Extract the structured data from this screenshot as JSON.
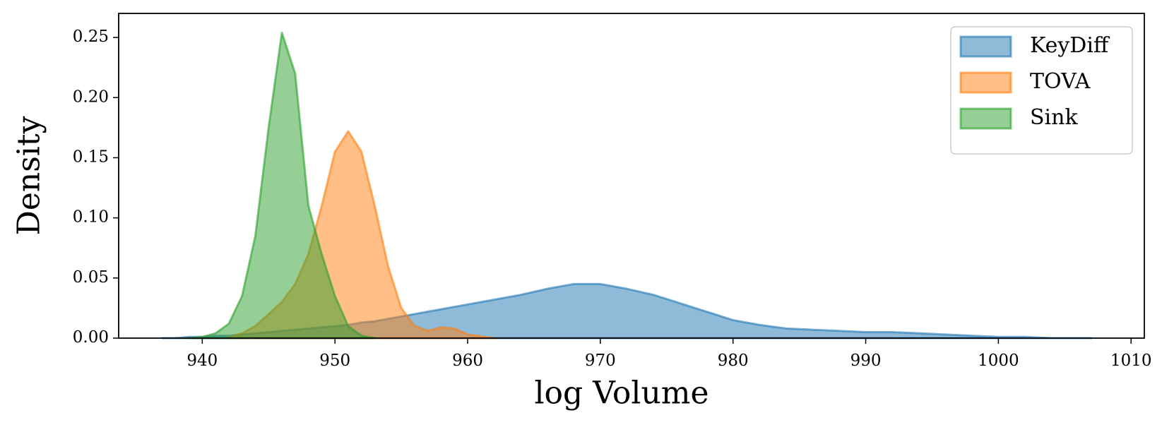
{
  "chart_data": {
    "type": "area",
    "xlabel": "log Volume",
    "ylabel": "Density",
    "x": [
      937,
      938,
      939,
      940,
      941,
      942,
      943,
      944,
      945,
      946,
      947,
      948,
      949,
      950,
      951,
      952,
      953,
      954,
      955,
      956,
      957,
      958,
      959,
      960,
      962,
      964,
      966,
      968,
      970,
      972,
      974,
      976,
      978,
      980,
      982,
      984,
      986,
      988,
      990,
      992,
      994,
      996,
      998,
      1000,
      1002,
      1004,
      1006,
      1007
    ],
    "series": [
      {
        "name": "KeyDiff",
        "color": "#1f77b4",
        "values": [
          0,
          0,
          0.001,
          0.001,
          0.002,
          0.002,
          0.003,
          0.004,
          0.005,
          0.006,
          0.007,
          0.008,
          0.009,
          0.01,
          0.011,
          0.013,
          0.014,
          0.016,
          0.018,
          0.02,
          0.022,
          0.024,
          0.026,
          0.028,
          0.032,
          0.036,
          0.041,
          0.045,
          0.045,
          0.041,
          0.036,
          0.029,
          0.022,
          0.015,
          0.011,
          0.008,
          0.007,
          0.006,
          0.005,
          0.005,
          0.004,
          0.003,
          0.002,
          0.001,
          0.001,
          0,
          0,
          0
        ]
      },
      {
        "name": "TOVA",
        "color": "#ff7f0e",
        "values": [
          null,
          null,
          null,
          null,
          null,
          0.001,
          0.004,
          0.01,
          0.02,
          0.03,
          0.045,
          0.07,
          0.11,
          0.155,
          0.172,
          0.155,
          0.11,
          0.06,
          0.025,
          0.01,
          0.006,
          0.009,
          0.008,
          0.003,
          0,
          null,
          null,
          null,
          null,
          null,
          null,
          null,
          null,
          null,
          null,
          null,
          null,
          null,
          null,
          null,
          null,
          null,
          null,
          null,
          null,
          null,
          null,
          null
        ]
      },
      {
        "name": "Sink",
        "color": "#2ca02c",
        "values": [
          null,
          null,
          0,
          0.001,
          0.004,
          0.012,
          0.035,
          0.085,
          0.175,
          0.254,
          0.22,
          0.11,
          0.07,
          0.035,
          0.01,
          0.002,
          0,
          null,
          null,
          null,
          null,
          null,
          null,
          null,
          null,
          null,
          null,
          null,
          null,
          null,
          null,
          null,
          null,
          null,
          null,
          null,
          null,
          null,
          null,
          null,
          null,
          null,
          null,
          null,
          null,
          null,
          null,
          null
        ]
      }
    ],
    "xlim": [
      933.7,
      1011
    ],
    "ylim": [
      0,
      0.27
    ],
    "xticks": [
      940,
      950,
      960,
      970,
      980,
      990,
      1000,
      1010
    ],
    "yticks": [
      {
        "value": 0,
        "label": "0.00"
      },
      {
        "value": 0.05,
        "label": "0.05"
      },
      {
        "value": 0.1,
        "label": "0.10"
      },
      {
        "value": 0.15,
        "label": "0.15"
      },
      {
        "value": 0.2,
        "label": "0.20"
      },
      {
        "value": 0.25,
        "label": "0.25"
      }
    ],
    "legend": "upper right"
  }
}
